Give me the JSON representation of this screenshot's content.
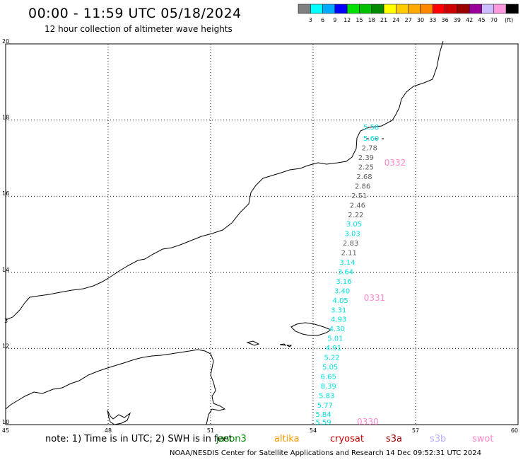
{
  "title": "00:00 - 11:59 UTC 05/18/2024",
  "subtitle": "12 hour collection of altimeter wave heights",
  "legend": {
    "colors": [
      "#808080",
      "#00ffff",
      "#00aaff",
      "#0000ff",
      "#00e000",
      "#00c000",
      "#008800",
      "#ffff00",
      "#ffcc00",
      "#ffaa00",
      "#ff8800",
      "#ff0000",
      "#cc0000",
      "#990000",
      "#990099",
      "#ccbbff",
      "#ff99dd",
      "#000000"
    ],
    "labels": [
      "3",
      "6",
      "9",
      "12",
      "15",
      "18",
      "21",
      "24",
      "27",
      "30",
      "33",
      "36",
      "39",
      "42",
      "45",
      "70"
    ],
    "unit": "(ft)"
  },
  "map": {
    "lat_range": [
      10,
      20
    ],
    "lon_range": [
      45,
      60
    ],
    "lat_labels": [
      "20",
      "18",
      "16",
      "14",
      "12",
      "10"
    ],
    "lon_labels": [
      "45",
      "48",
      "51",
      "54",
      "57",
      "60"
    ],
    "side_label": "3"
  },
  "points": [
    {
      "value": "5.58",
      "color": "#00e0e0",
      "lat": 17.75,
      "lon": 55.7
    },
    {
      "value": "5.60",
      "color": "#00e0e0",
      "lat": 17.45,
      "lon": 55.7
    },
    {
      "value": "2.78",
      "color": "#606060",
      "lat": 17.2,
      "lon": 55.65
    },
    {
      "value": "2.39",
      "color": "#606060",
      "lat": 16.95,
      "lon": 55.55
    },
    {
      "value": "2.25",
      "color": "#606060",
      "lat": 16.7,
      "lon": 55.55
    },
    {
      "value": "2.68",
      "color": "#606060",
      "lat": 16.45,
      "lon": 55.5
    },
    {
      "value": "2.86",
      "color": "#606060",
      "lat": 16.2,
      "lon": 55.45
    },
    {
      "value": "2.51",
      "color": "#606060",
      "lat": 15.95,
      "lon": 55.35
    },
    {
      "value": "2.46",
      "color": "#606060",
      "lat": 15.7,
      "lon": 55.3
    },
    {
      "value": "2.22",
      "color": "#606060",
      "lat": 15.45,
      "lon": 55.25
    },
    {
      "value": "3.05",
      "color": "#00e0e0",
      "lat": 15.2,
      "lon": 55.2
    },
    {
      "value": "3.03",
      "color": "#00e0e0",
      "lat": 14.95,
      "lon": 55.15
    },
    {
      "value": "2.83",
      "color": "#606060",
      "lat": 14.7,
      "lon": 55.1
    },
    {
      "value": "2.11",
      "color": "#606060",
      "lat": 14.45,
      "lon": 55.05
    },
    {
      "value": "3.14",
      "color": "#00e0e0",
      "lat": 14.2,
      "lon": 55.0
    },
    {
      "value": "3.64",
      "color": "#00e0e0",
      "lat": 13.95,
      "lon": 54.95
    },
    {
      "value": "3.16",
      "color": "#00e0e0",
      "lat": 13.7,
      "lon": 54.9
    },
    {
      "value": "3.40",
      "color": "#00e0e0",
      "lat": 13.45,
      "lon": 54.85
    },
    {
      "value": "4.05",
      "color": "#00e0e0",
      "lat": 13.2,
      "lon": 54.8
    },
    {
      "value": "3.31",
      "color": "#00e0e0",
      "lat": 12.95,
      "lon": 54.75
    },
    {
      "value": "4.93",
      "color": "#00e0e0",
      "lat": 12.7,
      "lon": 54.75
    },
    {
      "value": "4.30",
      "color": "#00e0e0",
      "lat": 12.45,
      "lon": 54.7
    },
    {
      "value": "5.01",
      "color": "#00e0e0",
      "lat": 12.2,
      "lon": 54.65
    },
    {
      "value": "4.91",
      "color": "#00e0e0",
      "lat": 11.95,
      "lon": 54.6
    },
    {
      "value": "5.22",
      "color": "#00e0e0",
      "lat": 11.7,
      "lon": 54.55
    },
    {
      "value": "5.05",
      "color": "#00e0e0",
      "lat": 11.45,
      "lon": 54.5
    },
    {
      "value": "6.65",
      "color": "#00e0e0",
      "lat": 11.2,
      "lon": 54.45
    },
    {
      "value": "8.39",
      "color": "#00e0e0",
      "lat": 10.95,
      "lon": 54.45
    },
    {
      "value": "5.83",
      "color": "#00e0e0",
      "lat": 10.7,
      "lon": 54.4
    },
    {
      "value": "5.77",
      "color": "#00e0e0",
      "lat": 10.45,
      "lon": 54.35
    },
    {
      "value": "5.84",
      "color": "#00e0e0",
      "lat": 10.2,
      "lon": 54.3
    },
    {
      "value": "5.59",
      "color": "#00e0e0",
      "lat": 10.0,
      "lon": 54.3
    }
  ],
  "pass_labels": [
    {
      "text": "0332",
      "lat": 16.8,
      "lon": 56.4
    },
    {
      "text": "0331",
      "lat": 13.25,
      "lon": 55.8
    },
    {
      "text": "0330",
      "lat": 10.0,
      "lon": 55.6
    }
  ],
  "pass_label_color": "#ff88cc",
  "note": "note: 1) Time is in UTC; 2) SWH is in feet",
  "missions": [
    {
      "name": "jason3",
      "color": "#008800"
    },
    {
      "name": "altika",
      "color": "#ff9900"
    },
    {
      "name": "cryosat",
      "color": "#cc0000"
    },
    {
      "name": "s3a",
      "color": "#990000"
    },
    {
      "name": "s3b",
      "color": "#bbaaff"
    },
    {
      "name": "swot",
      "color": "#ff88cc"
    }
  ],
  "footer": "NOAA/NESDIS Center for Satellite Applications and Research   14 Dec 09:52:31 UTC 2024"
}
